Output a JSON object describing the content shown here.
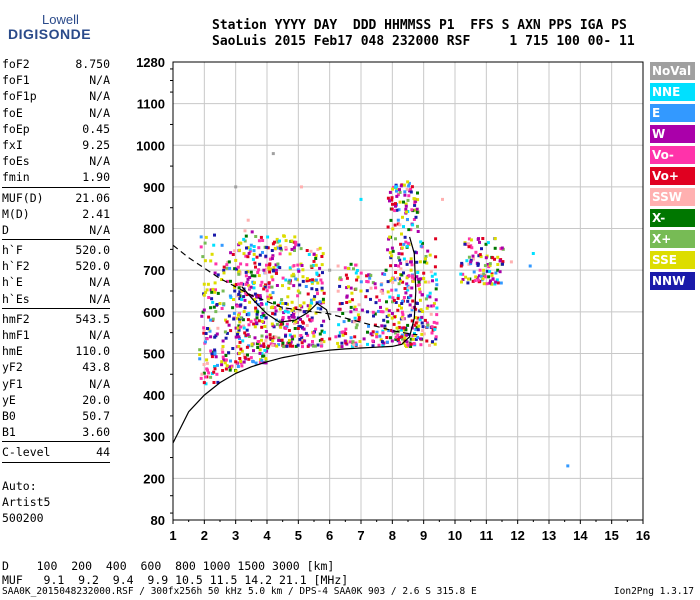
{
  "logo": {
    "line1": "Lowell",
    "line2": "DIGISONDE"
  },
  "header": {
    "line1": "Station YYYY DAY  DDD HHMMSS P1  FFS S AXN PPS IGA PS",
    "line2": "SaoLuis 2015 Feb17 048 232000 RSF     1 715 100 00- 11"
  },
  "params_group1": [
    {
      "label": "foF2",
      "value": "8.750"
    },
    {
      "label": "foF1",
      "value": "N/A"
    },
    {
      "label": "foF1p",
      "value": "N/A"
    },
    {
      "label": "foE",
      "value": "N/A"
    },
    {
      "label": "foEp",
      "value": "0.45"
    },
    {
      "label": "fxI",
      "value": "9.25"
    },
    {
      "label": "foEs",
      "value": "N/A"
    },
    {
      "label": "fmin",
      "value": "1.90"
    }
  ],
  "params_group2": [
    {
      "label": "MUF(D)",
      "value": "21.06"
    },
    {
      "label": "M(D)",
      "value": "2.41"
    },
    {
      "label": "D",
      "value": "N/A"
    }
  ],
  "params_group3": [
    {
      "label": "h`F",
      "value": "520.0"
    },
    {
      "label": "h`F2",
      "value": "520.0"
    },
    {
      "label": "h`E",
      "value": "N/A"
    },
    {
      "label": "h`Es",
      "value": "N/A"
    }
  ],
  "params_group4": [
    {
      "label": "hmF2",
      "value": "543.5"
    },
    {
      "label": "hmF1",
      "value": "N/A"
    },
    {
      "label": "hmE",
      "value": "110.0"
    },
    {
      "label": "yF2",
      "value": "43.8"
    },
    {
      "label": "yF1",
      "value": "N/A"
    },
    {
      "label": "yE",
      "value": "20.0"
    },
    {
      "label": "B0",
      "value": "50.7"
    },
    {
      "label": "B1",
      "value": "3.60"
    }
  ],
  "clevel": {
    "label": "C-level",
    "value": "44"
  },
  "auto": [
    "Auto:",
    "Artist5",
    "500200"
  ],
  "legend": [
    {
      "name": "NoVal",
      "color": "#a0a0a0"
    },
    {
      "name": "NNE",
      "color": "#00e0ff"
    },
    {
      "name": "E",
      "color": "#3399ff"
    },
    {
      "name": "W",
      "color": "#aa00aa"
    },
    {
      "name": "Vo-",
      "color": "#ff33aa"
    },
    {
      "name": "Vo+",
      "color": "#e00020"
    },
    {
      "name": "SSW",
      "color": "#ffb0b0"
    },
    {
      "name": "X-",
      "color": "#007700"
    },
    {
      "name": "X+",
      "color": "#77bb55"
    },
    {
      "name": "SSE",
      "color": "#dddd00"
    },
    {
      "name": "NNW",
      "color": "#1a1aaa"
    }
  ],
  "footer": {
    "d_row": "D    100  200  400  600  800 1000 1500 3000 [km]",
    "muf_row": "MUF   9.1  9.2  9.4  9.9 10.5 11.5 14.2 21.1 [MHz]",
    "file_line": "SAA0K_2015048232000.RSF / 300fx256h 50 kHz 5.0 km / DPS-4 SAA0K 903 / 2.6 S 315.8 E",
    "version": "Ion2Png 1.3.17"
  },
  "chart_data": {
    "type": "scatter",
    "xlabel": "",
    "ylabel": "",
    "xlim": [
      1,
      16
    ],
    "ylim": [
      80,
      1280
    ],
    "x_ticks": [
      1,
      2,
      3,
      4,
      5,
      6,
      7,
      8,
      9,
      10,
      11,
      12,
      13,
      14,
      15,
      16
    ],
    "y_ticks": [
      80,
      200,
      300,
      400,
      500,
      600,
      700,
      800,
      900,
      1000,
      1100,
      1280
    ],
    "grid": true,
    "legend_position": "right",
    "series": [
      {
        "name": "W",
        "points": [
          [
            2.2,
            540
          ],
          [
            2.6,
            530
          ],
          [
            3.1,
            540
          ],
          [
            3.4,
            545
          ],
          [
            3.9,
            700
          ],
          [
            4.3,
            700
          ],
          [
            4.8,
            540
          ],
          [
            5.2,
            530
          ],
          [
            6.5,
            530
          ],
          [
            7.1,
            535
          ],
          [
            8.0,
            530
          ],
          [
            8.4,
            880
          ],
          [
            8.9,
            535
          ],
          [
            10.5,
            720
          ],
          [
            11.0,
            730
          ]
        ]
      },
      {
        "name": "Vo-",
        "points": [
          [
            1.9,
            440
          ],
          [
            2.1,
            460
          ],
          [
            2.4,
            450
          ],
          [
            3.2,
            470
          ],
          [
            3.5,
            490
          ],
          [
            4.6,
            560
          ],
          [
            5.3,
            590
          ],
          [
            6.2,
            540
          ],
          [
            7.5,
            540
          ],
          [
            8.2,
            710
          ],
          [
            8.5,
            520
          ],
          [
            9.4,
            540
          ],
          [
            10.8,
            700
          ]
        ]
      },
      {
        "name": "Vo+",
        "points": [
          [
            2.0,
            430
          ],
          [
            2.3,
            455
          ],
          [
            3.0,
            480
          ],
          [
            3.3,
            490
          ],
          [
            4.1,
            545
          ],
          [
            5.0,
            560
          ],
          [
            6.0,
            535
          ],
          [
            6.8,
            540
          ],
          [
            8.1,
            860
          ],
          [
            8.3,
            540
          ],
          [
            9.1,
            530
          ],
          [
            10.2,
            710
          ],
          [
            11.2,
            730
          ]
        ]
      },
      {
        "name": "SSE",
        "points": [
          [
            2.0,
            640
          ],
          [
            2.5,
            620
          ],
          [
            3.2,
            650
          ],
          [
            3.6,
            670
          ],
          [
            4.1,
            640
          ],
          [
            4.5,
            620
          ],
          [
            5.0,
            650
          ],
          [
            5.5,
            630
          ],
          [
            6.6,
            660
          ],
          [
            7.0,
            650
          ],
          [
            8.0,
            680
          ],
          [
            8.6,
            700
          ],
          [
            9.0,
            680
          ]
        ]
      },
      {
        "name": "NNW",
        "points": [
          [
            2.1,
            560
          ],
          [
            2.8,
            590
          ],
          [
            3.3,
            610
          ],
          [
            3.8,
            630
          ],
          [
            4.2,
            700
          ],
          [
            4.6,
            620
          ],
          [
            5.2,
            600
          ],
          [
            6.4,
            620
          ],
          [
            7.4,
            590
          ],
          [
            8.3,
            620
          ],
          [
            8.8,
            620
          ]
        ]
      },
      {
        "name": "E",
        "points": [
          [
            1.9,
            780
          ],
          [
            2.2,
            580
          ],
          [
            3.5,
            760
          ],
          [
            4.3,
            580
          ],
          [
            12.4,
            710
          ],
          [
            13.6,
            230
          ]
        ]
      },
      {
        "name": "NNE",
        "points": [
          [
            2.3,
            760
          ],
          [
            4.4,
            770
          ],
          [
            5.6,
            690
          ],
          [
            7.0,
            870
          ],
          [
            12.5,
            740
          ]
        ]
      },
      {
        "name": "X-",
        "points": [
          [
            2.2,
            610
          ],
          [
            3.7,
            600
          ],
          [
            4.9,
            560
          ],
          [
            7.8,
            700
          ]
        ]
      },
      {
        "name": "X+",
        "points": [
          [
            2.6,
            650
          ],
          [
            3.1,
            690
          ],
          [
            4.7,
            670
          ],
          [
            8.2,
            730
          ]
        ]
      },
      {
        "name": "SSW",
        "points": [
          [
            3.4,
            820
          ],
          [
            5.1,
            900
          ],
          [
            9.6,
            870
          ],
          [
            11.8,
            720
          ]
        ]
      },
      {
        "name": "NoVal",
        "points": [
          [
            3.0,
            900
          ],
          [
            4.2,
            980
          ],
          [
            6.0,
            700
          ]
        ]
      }
    ],
    "density_regions": [
      {
        "x": [
          1.8,
          2.4
        ],
        "y": [
          430,
          790
        ],
        "density": 0.25
      },
      {
        "x": [
          2.5,
          3.1
        ],
        "y": [
          460,
          780
        ],
        "density": 0.3
      },
      {
        "x": [
          3.0,
          4.0
        ],
        "y": [
          480,
          800
        ],
        "density": 0.45
      },
      {
        "x": [
          4.0,
          5.0
        ],
        "y": [
          520,
          790
        ],
        "density": 0.45
      },
      {
        "x": [
          5.0,
          5.8
        ],
        "y": [
          520,
          760
        ],
        "density": 0.4
      },
      {
        "x": [
          6.2,
          7.0
        ],
        "y": [
          520,
          720
        ],
        "density": 0.35
      },
      {
        "x": [
          7.1,
          7.8
        ],
        "y": [
          520,
          700
        ],
        "density": 0.35
      },
      {
        "x": [
          7.8,
          8.8
        ],
        "y": [
          520,
          920
        ],
        "density": 0.45
      },
      {
        "x": [
          8.8,
          9.4
        ],
        "y": [
          520,
          780
        ],
        "density": 0.35
      },
      {
        "x": [
          10.1,
          11.5
        ],
        "y": [
          670,
          780
        ],
        "density": 0.45
      }
    ],
    "curves": [
      {
        "name": "profile_solid",
        "style": "solid",
        "points": [
          [
            1,
            285
          ],
          [
            1.5,
            360
          ],
          [
            2,
            400
          ],
          [
            2.5,
            430
          ],
          [
            3,
            452
          ],
          [
            3.5,
            468
          ],
          [
            4,
            480
          ],
          [
            4.5,
            490
          ],
          [
            5,
            497
          ],
          [
            5.5,
            503
          ],
          [
            6,
            508
          ],
          [
            6.5,
            511
          ],
          [
            7,
            513
          ],
          [
            7.5,
            515
          ],
          [
            8,
            517
          ],
          [
            8.3,
            522
          ],
          [
            8.55,
            540
          ],
          [
            8.7,
            585
          ],
          [
            8.75,
            650
          ],
          [
            8.7,
            740
          ],
          [
            8.55,
            780
          ]
        ]
      },
      {
        "name": "trace_dashed",
        "style": "dashed",
        "points": [
          [
            1,
            760
          ],
          [
            1.5,
            730
          ],
          [
            2,
            705
          ],
          [
            2.5,
            680
          ],
          [
            3,
            660
          ],
          [
            3.5,
            640
          ],
          [
            4,
            625
          ],
          [
            4.5,
            610
          ],
          [
            5,
            605
          ],
          [
            5.5,
            600
          ],
          [
            6,
            595
          ],
          [
            6.5,
            585
          ],
          [
            7,
            575
          ],
          [
            7.5,
            565
          ],
          [
            8,
            555
          ],
          [
            8.5,
            548
          ],
          [
            8.8,
            545
          ]
        ]
      },
      {
        "name": "trace_solid_2",
        "style": "solid",
        "points": [
          [
            3.2,
            660
          ],
          [
            3.6,
            625
          ],
          [
            4.0,
            595
          ],
          [
            4.4,
            575
          ],
          [
            4.9,
            580
          ],
          [
            5.3,
            598
          ],
          [
            5.6,
            620
          ],
          [
            5.9,
            605
          ],
          [
            6.0,
            580
          ]
        ]
      }
    ]
  }
}
